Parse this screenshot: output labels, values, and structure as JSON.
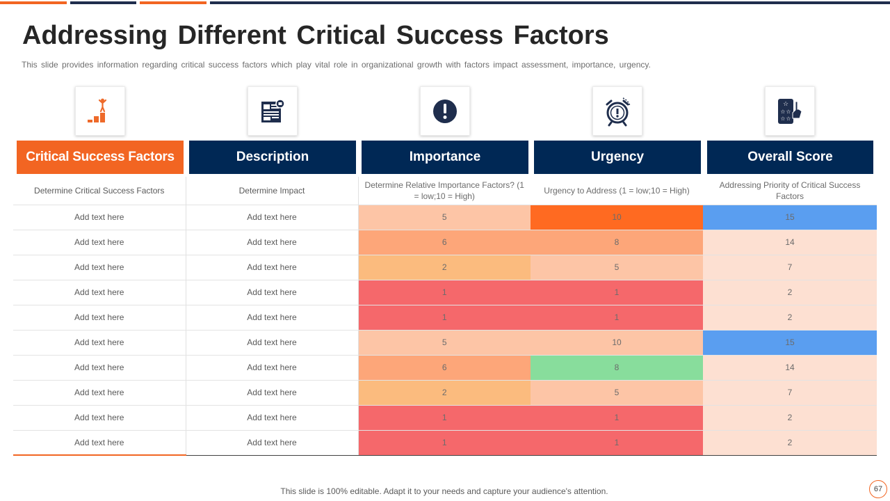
{
  "slide": {
    "title": "Addressing Different Critical Success Factors",
    "subtitle": "This slide provides information regarding critical success factors which play vital role in organizational growth with factors impact assessment, importance, urgency.",
    "footer": "This slide is 100% editable. Adapt it to your needs and capture your audience's attention.",
    "page_number": "67"
  },
  "icons": [
    "podium-person-icon",
    "newspaper-icon",
    "exclamation-icon",
    "alarm-clock-icon",
    "star-rating-hand-icon"
  ],
  "headers": [
    "Critical Success Factors",
    "Description",
    "Importance",
    "Urgency",
    "Overall Score"
  ],
  "subheaders": [
    "Determine Critical Success Factors",
    "Determine Impact",
    "Determine Relative Importance Factors? (1 = low;10 = High)",
    "Urgency to Address (1 = low;10 = High)",
    "Addressing Priority of Critical Success Factors"
  ],
  "rows": [
    {
      "factor": "Add text here",
      "description": "Add text here",
      "importance": "5",
      "urgency": "10",
      "score": "15"
    },
    {
      "factor": "Add text here",
      "description": "Add text here",
      "importance": "6",
      "urgency": "8",
      "score": "14"
    },
    {
      "factor": "Add text here",
      "description": "Add text here",
      "importance": "2",
      "urgency": "5",
      "score": "7"
    },
    {
      "factor": "Add text here",
      "description": "Add text here",
      "importance": "1",
      "urgency": "1",
      "score": "2"
    },
    {
      "factor": "Add text here",
      "description": "Add text here",
      "importance": "1",
      "urgency": "1",
      "score": "2"
    },
    {
      "factor": "Add text here",
      "description": "Add text here",
      "importance": "5",
      "urgency": "10",
      "score": "15"
    },
    {
      "factor": "Add text here",
      "description": "Add text here",
      "importance": "6",
      "urgency": "8",
      "score": "14"
    },
    {
      "factor": "Add text here",
      "description": "Add text here",
      "importance": "2",
      "urgency": "5",
      "score": "7"
    },
    {
      "factor": "Add text here",
      "description": "Add text here",
      "importance": "1",
      "urgency": "1",
      "score": "2"
    },
    {
      "factor": "Add text here",
      "description": "Add text here",
      "importance": "1",
      "urgency": "1",
      "score": "2"
    }
  ],
  "cell_colors": [
    {
      "importance": "#fdc5a6",
      "urgency": "#ff6a21",
      "score": "#5a9ef0"
    },
    {
      "importance": "#fda679",
      "urgency": "#fda679",
      "score": "#fde0d2"
    },
    {
      "importance": "#fbbb7e",
      "urgency": "#fdc5a6",
      "score": "#fde0d2"
    },
    {
      "importance": "#f5686b",
      "urgency": "#f5686b",
      "score": "#fde0d2"
    },
    {
      "importance": "#f5686b",
      "urgency": "#f5686b",
      "score": "#fde0d2"
    },
    {
      "importance": "#fdc5a6",
      "urgency": "#fdc5a6",
      "score": "#5a9ef0"
    },
    {
      "importance": "#fda679",
      "urgency": "#88dd9c",
      "score": "#fde0d2"
    },
    {
      "importance": "#fbbb7e",
      "urgency": "#fdc5a6",
      "score": "#fde0d2"
    },
    {
      "importance": "#f5686b",
      "urgency": "#f5686b",
      "score": "#fde0d2"
    },
    {
      "importance": "#f5686b",
      "urgency": "#f5686b",
      "score": "#fde0d2"
    }
  ],
  "colors": {
    "navy": "#002855",
    "orange": "#f26522",
    "icon_orange": "#ee6a2a",
    "icon_navy": "#1f2e4d"
  }
}
